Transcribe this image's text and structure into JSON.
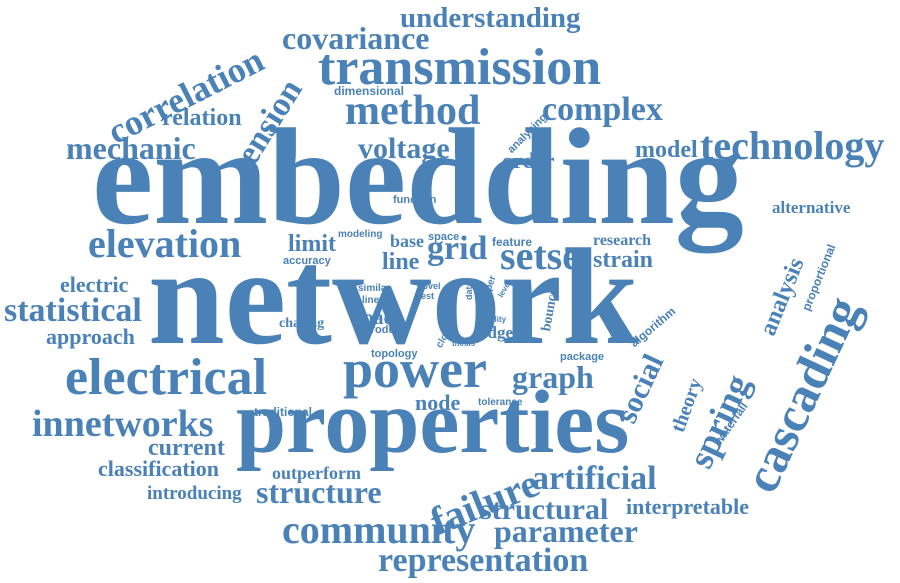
{
  "accent_color": "#4a82b7",
  "words": {
    "understanding": "understanding",
    "covariance": "covariance",
    "correlation": "correlation",
    "transmission": "transmission",
    "dimensional": "dimensional",
    "relation": "relation",
    "tension": "tension",
    "method": "method",
    "complex": "complex",
    "mechanic": "mechanic",
    "voltage": "voltage",
    "analysing": "analysing",
    "order": "order",
    "model": "model",
    "technology": "technology",
    "embedding": "embedding",
    "function": "function",
    "alternative": "alternative",
    "elevation": "elevation",
    "limit": "limit",
    "modeling": "modeling",
    "accuracy": "accuracy",
    "base": "base",
    "space": "space",
    "grid": "grid",
    "feature": "feature",
    "setse": "setse",
    "research": "research",
    "strain": "strain",
    "line": "line",
    "network": "network",
    "electric": "electric",
    "statistical": "statistical",
    "approach": "approach",
    "similar": "similar",
    "linear": "linear",
    "novel": "novel",
    "test": "test",
    "data": "data",
    "paper": "paper",
    "level": "level",
    "chasing": "chasing",
    "load": "load",
    "produce": "produce",
    "close": "close",
    "thesis": "thesis",
    "ability": "ability",
    "edge": "edge",
    "bounce": "bounce",
    "algorithm": "algorithm",
    "analysis": "analysis",
    "proportional": "proportional",
    "cascading": "cascading",
    "topology": "topology",
    "package": "package",
    "electrical": "electrical",
    "power": "power",
    "graph": "graph",
    "social": "social",
    "node": "node",
    "tolerance": "tolerance",
    "traditional": "traditional",
    "theory": "theory",
    "spring": "spring",
    "waterfall": "waterfall",
    "innetworks": "innetworks",
    "properties": "properties",
    "current": "current",
    "classification": "classification",
    "outperform": "outperform",
    "introducing": "introducing",
    "structure": "structure",
    "failure": "failure",
    "artificial": "artificial",
    "structural": "structural",
    "interpretable": "interpretable",
    "community": "community",
    "parameter": "parameter",
    "representation": "representation"
  }
}
